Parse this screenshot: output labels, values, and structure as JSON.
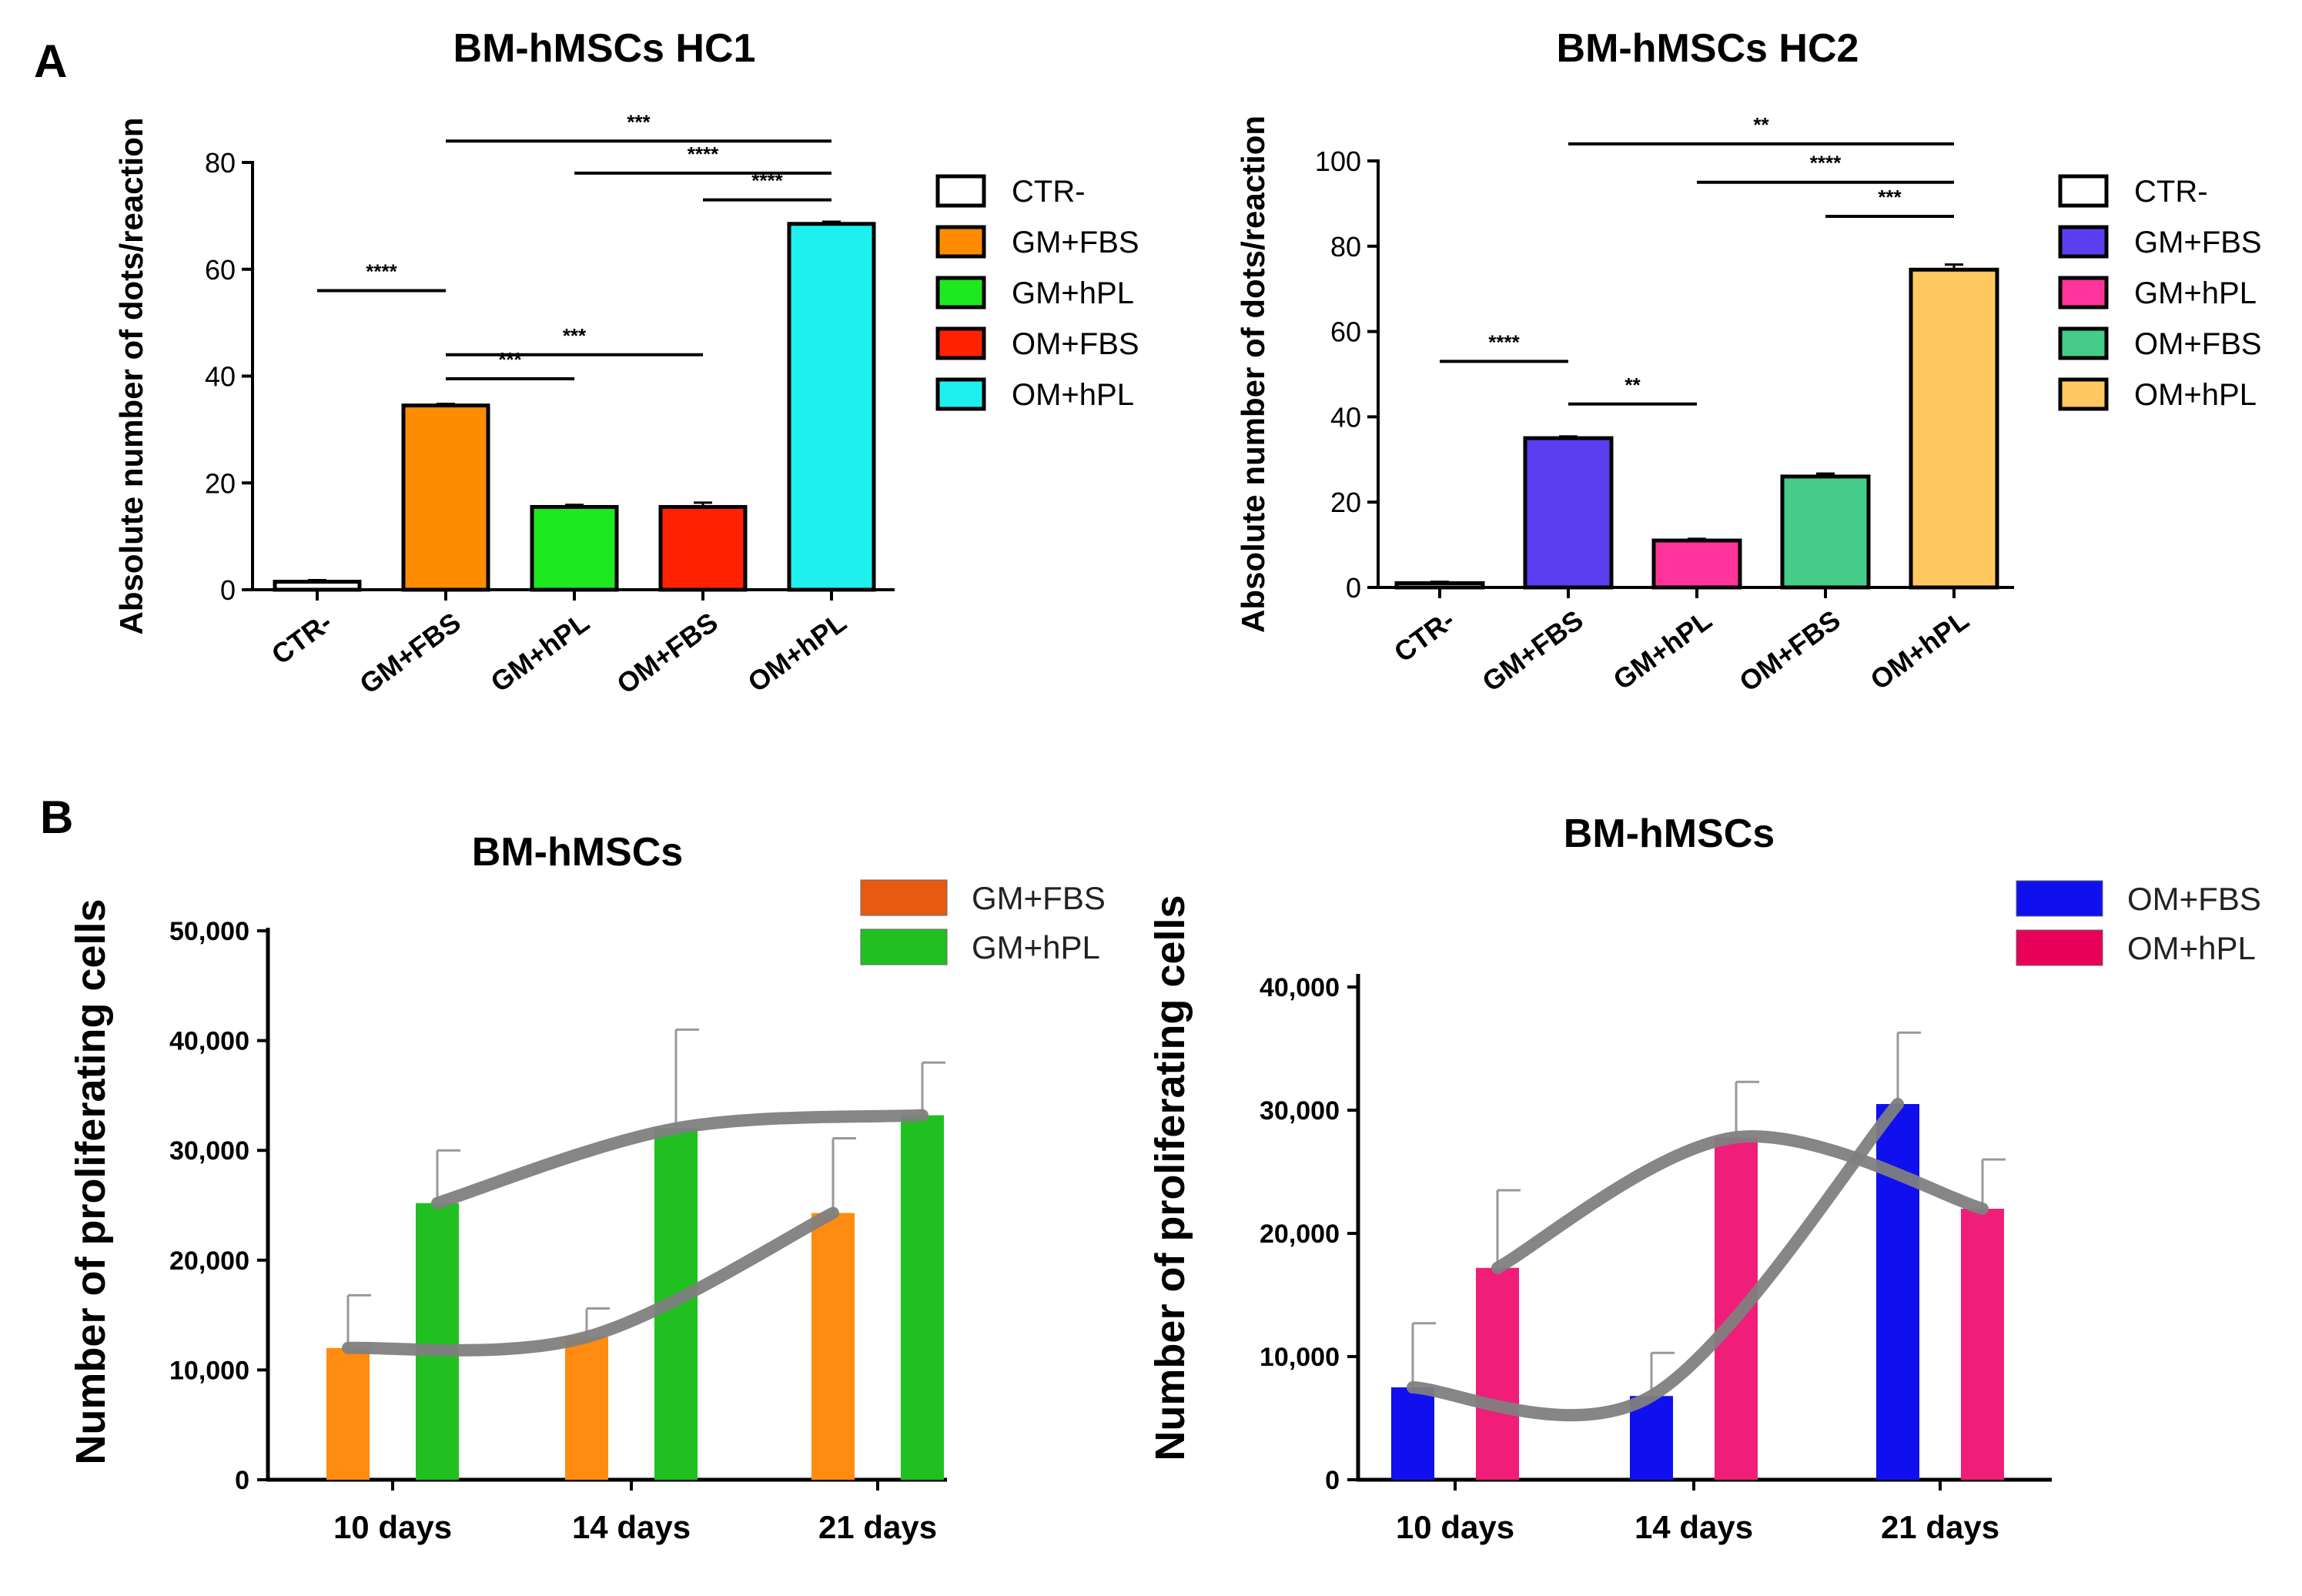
{
  "panels": {
    "a_letter": "A",
    "b_letter": "B"
  },
  "chart_data": [
    {
      "type": "bar",
      "title": "BM-hMSCs HC1",
      "ylabel": "Absolute number of dots/reaction",
      "ylim": [
        0,
        80
      ],
      "yticks": [
        "0",
        "20",
        "40",
        "60",
        "80"
      ],
      "categories": [
        "CTR-",
        "GM+FBS",
        "GM+hPL",
        "OM+FBS",
        "OM+hPL"
      ],
      "values": [
        1.5,
        34.5,
        15.5,
        15.5,
        68.5
      ],
      "errors": [
        0.3,
        0.3,
        0.4,
        0.8,
        0.4
      ],
      "colors": [
        "#ffffff",
        "#ff8c00",
        "#1ee81e",
        "#ff2200",
        "#1ef0f0"
      ],
      "legend": [
        "CTR-",
        "GM+FBS",
        "GM+hPL",
        "OM+FBS",
        "OM+hPL"
      ],
      "significance": [
        {
          "from": 0,
          "to": 1,
          "label": "****",
          "y": 56
        },
        {
          "from": 1,
          "to": 2,
          "label": "***",
          "y": 39.5
        },
        {
          "from": 1,
          "to": 3,
          "label": "***",
          "y": 44
        },
        {
          "from": 1,
          "to": 4,
          "label": "***",
          "y": 84
        },
        {
          "from": 2,
          "to": 4,
          "label": "****",
          "y": 78
        },
        {
          "from": 3,
          "to": 4,
          "label": "****",
          "y": 73
        }
      ]
    },
    {
      "type": "bar",
      "title": "BM-hMSCs HC2",
      "ylabel": "Absolute number of dots/reaction",
      "ylim": [
        0,
        100
      ],
      "yticks": [
        "0",
        "20",
        "40",
        "60",
        "80",
        "100"
      ],
      "categories": [
        "CTR-",
        "GM+FBS",
        "GM+hPL",
        "OM+FBS",
        "OM+hPL"
      ],
      "values": [
        1,
        35,
        11,
        26,
        74.5
      ],
      "errors": [
        0.3,
        0.4,
        0.4,
        0.7,
        1.2
      ],
      "colors": [
        "#ffffff",
        "#5a3ef0",
        "#ff3399",
        "#44cc88",
        "#ffc860"
      ],
      "legend": [
        "CTR-",
        "GM+FBS",
        "GM+hPL",
        "OM+FBS",
        "OM+hPL"
      ],
      "significance": [
        {
          "from": 0,
          "to": 1,
          "label": "****",
          "y": 53
        },
        {
          "from": 1,
          "to": 2,
          "label": "**",
          "y": 43
        },
        {
          "from": 1,
          "to": 4,
          "label": "**",
          "y": 104
        },
        {
          "from": 2,
          "to": 4,
          "label": "****",
          "y": 95
        },
        {
          "from": 3,
          "to": 4,
          "label": "***",
          "y": 87
        }
      ]
    },
    {
      "type": "bar",
      "title": "BM-hMSCs",
      "ylabel": "Number of proliferating cells",
      "ylim": [
        0,
        50000
      ],
      "yticks": [
        "0",
        "10,000",
        "20,000",
        "30,000",
        "40,000",
        "50,000"
      ],
      "categories": [
        "10 days",
        "14 days",
        "21 days"
      ],
      "series": [
        {
          "name": "GM+FBS",
          "values": [
            12000,
            13000,
            24300
          ],
          "errors": [
            4800,
            2600,
            6800
          ],
          "color": "#ff8c10"
        },
        {
          "name": "GM+hPL",
          "values": [
            25200,
            32000,
            33200
          ],
          "errors": [
            4800,
            9000,
            4800
          ],
          "color": "#20c020"
        }
      ],
      "legend_colors": [
        "#e85a10",
        "#20c020"
      ]
    },
    {
      "type": "bar",
      "title": "BM-hMSCs",
      "ylabel": "Number of proliferating cells",
      "ylim": [
        0,
        40000
      ],
      "yticks": [
        "0",
        "10,000",
        "20,000",
        "30,000",
        "40,000"
      ],
      "categories": [
        "10 days",
        "14 days",
        "21 days"
      ],
      "series": [
        {
          "name": "OM+FBS",
          "values": [
            7500,
            6800,
            30500
          ],
          "errors": [
            5200,
            3500,
            5800
          ],
          "color": "#1010ee"
        },
        {
          "name": "OM+hPL",
          "values": [
            17200,
            27800,
            22000
          ],
          "errors": [
            6300,
            4500,
            4000
          ],
          "color": "#f01e78"
        }
      ],
      "legend_colors": [
        "#1010ee",
        "#e8005a"
      ]
    }
  ]
}
